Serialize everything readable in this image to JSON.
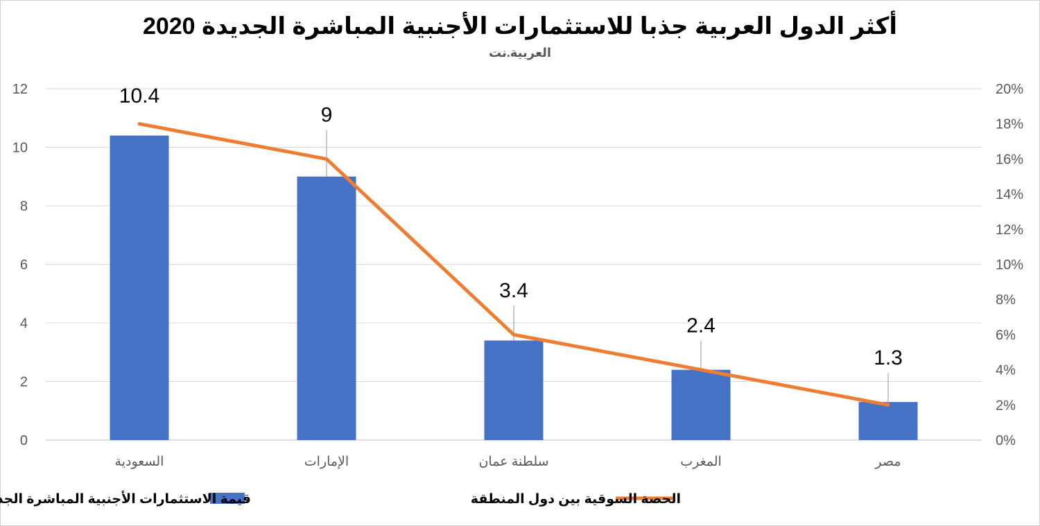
{
  "chart_data": {
    "type": "bar+line",
    "title": "أكثر الدول العربية جذبا للاستثمارات الأجنبية المباشرة الجديدة 2020",
    "subtitle": "العربية.نت",
    "categories": [
      "السعودية",
      "الإمارات",
      "سلطنة عمان",
      "المغرب",
      "مصر"
    ],
    "series": [
      {
        "name": "قيمة الاستثمارات الأجنبية المباشرة الجديدة (بالمليار دولار)",
        "type": "bar",
        "axis": "left",
        "color": "#4472C4",
        "values": [
          10.4,
          9,
          3.4,
          2.4,
          1.3
        ],
        "labels": [
          "10.4",
          "9",
          "3.4",
          "2.4",
          "1.3"
        ]
      },
      {
        "name": "الحصة السوقية بين دول المنطقة",
        "type": "line",
        "axis": "right",
        "color": "#ED7D31",
        "values": [
          18,
          16,
          6,
          4,
          2
        ]
      }
    ],
    "y_left": {
      "ylim": [
        0,
        12
      ],
      "ticks": [
        "0",
        "2",
        "4",
        "6",
        "8",
        "10",
        "12"
      ]
    },
    "y_right": {
      "ylim": [
        0,
        20
      ],
      "ticks": [
        "0%",
        "2%",
        "4%",
        "6%",
        "8%",
        "10%",
        "12%",
        "14%",
        "16%",
        "18%",
        "20%"
      ]
    },
    "grid": true,
    "legend_position": "bottom"
  }
}
